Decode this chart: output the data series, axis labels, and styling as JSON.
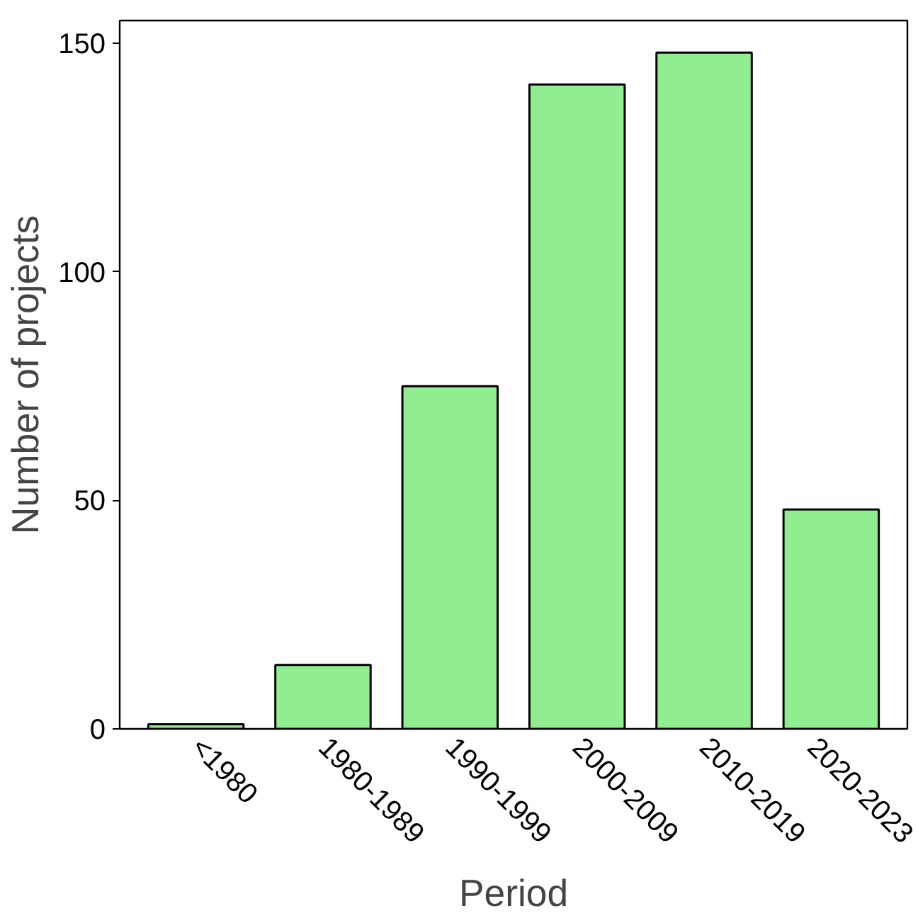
{
  "chart_data": {
    "type": "bar",
    "xlabel": "Period",
    "ylabel": "Number of projects",
    "categories": [
      "<1980",
      "1980-1989",
      "1990-1999",
      "2000-2009",
      "2010-2019",
      "2020-2023"
    ],
    "values": [
      1,
      14,
      75,
      141,
      148,
      48
    ],
    "color": "#90ee90",
    "ylim": [
      0,
      155
    ],
    "yticks": [
      0,
      50,
      100,
      150
    ],
    "grid": false
  }
}
